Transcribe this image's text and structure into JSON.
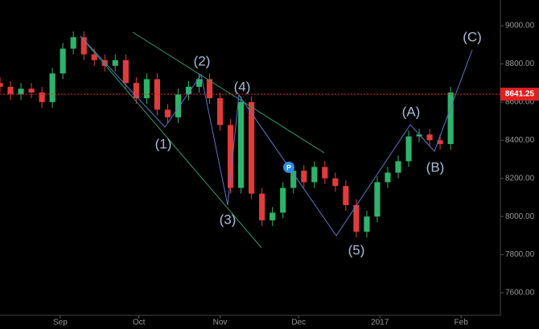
{
  "chart_data": {
    "type": "candlestick",
    "x": [
      8,
      12,
      16,
      20,
      24,
      28,
      32,
      36,
      40,
      44,
      48,
      52,
      56,
      60,
      64,
      68,
      72,
      76,
      80,
      84,
      88,
      92,
      96,
      100,
      104,
      108,
      112,
      116,
      120,
      124,
      128,
      132,
      136,
      140,
      144,
      148,
      152,
      156,
      160,
      164,
      168,
      172,
      176,
      180
    ],
    "close": [
      8680,
      8640,
      8670,
      8650,
      8600,
      8750,
      8880,
      8940,
      8850,
      8820,
      8790,
      8820,
      8700,
      8620,
      8720,
      8560,
      8520,
      8640,
      8680,
      8720,
      8620,
      8480,
      8150,
      8600,
      8120,
      7980,
      8020,
      8150,
      8240,
      8180,
      8260,
      8200,
      8160,
      8060,
      7920,
      8000,
      8180,
      8230,
      8290,
      8420,
      8430,
      8400,
      8380,
      8650
    ],
    "open": [
      8700,
      8680,
      8640,
      8670,
      8650,
      8600,
      8750,
      8880,
      8940,
      8850,
      8820,
      8790,
      8820,
      8700,
      8620,
      8720,
      8560,
      8520,
      8640,
      8680,
      8720,
      8620,
      8480,
      8150,
      8600,
      8120,
      7980,
      8020,
      8150,
      8240,
      8180,
      8260,
      8200,
      8160,
      8060,
      7920,
      8000,
      8180,
      8230,
      8290,
      8420,
      8430,
      8400,
      8380
    ],
    "high": [
      8730,
      8710,
      8700,
      8700,
      8680,
      8780,
      8910,
      8970,
      8970,
      8880,
      8850,
      8850,
      8850,
      8730,
      8750,
      8750,
      8590,
      8670,
      8710,
      8750,
      8750,
      8650,
      8510,
      8630,
      8630,
      8150,
      8050,
      8180,
      8270,
      8270,
      8290,
      8290,
      8230,
      8190,
      8090,
      8030,
      8210,
      8260,
      8320,
      8450,
      8460,
      8460,
      8430,
      8680
    ],
    "low": [
      8650,
      8610,
      8610,
      8620,
      8570,
      8570,
      8720,
      8850,
      8820,
      8790,
      8760,
      8760,
      8670,
      8590,
      8590,
      8530,
      8490,
      8490,
      8610,
      8650,
      8590,
      8450,
      8120,
      8120,
      8090,
      7950,
      7950,
      7990,
      8120,
      8150,
      8150,
      8170,
      8130,
      8030,
      7890,
      7890,
      7970,
      8150,
      8200,
      8260,
      8390,
      8370,
      8350,
      8350
    ],
    "up_color": "#2fb36b",
    "down_color": "#e23b3b",
    "ylim": [
      7482,
      9135
    ],
    "yticks": [
      {
        "value": 7600,
        "label": "7600.00"
      },
      {
        "value": 7800,
        "label": "7800.00"
      },
      {
        "value": 8000,
        "label": "8000.00"
      },
      {
        "value": 8200,
        "label": "8200.00"
      },
      {
        "value": 8400,
        "label": "8400.00"
      },
      {
        "value": 8600,
        "label": "8600.00"
      },
      {
        "value": 8800,
        "label": "8800.00"
      },
      {
        "value": 9000,
        "label": "9000.00"
      }
    ],
    "xlim": [
      8,
      199
    ],
    "xticks": [
      {
        "value": 31,
        "label": "Sep"
      },
      {
        "value": 61,
        "label": "Oct"
      },
      {
        "value": 92,
        "label": "Nov"
      },
      {
        "value": 122,
        "label": "Dec"
      },
      {
        "value": 153,
        "label": "2017"
      },
      {
        "value": 184,
        "label": "Feb"
      }
    ],
    "last_price": 8641.25,
    "last_price_color": "#e02020",
    "waves": [
      "(1)",
      "(2)",
      "(3)",
      "(4)",
      "(5)",
      "(A)",
      "(B)",
      "(C)"
    ],
    "marker": "P"
  }
}
